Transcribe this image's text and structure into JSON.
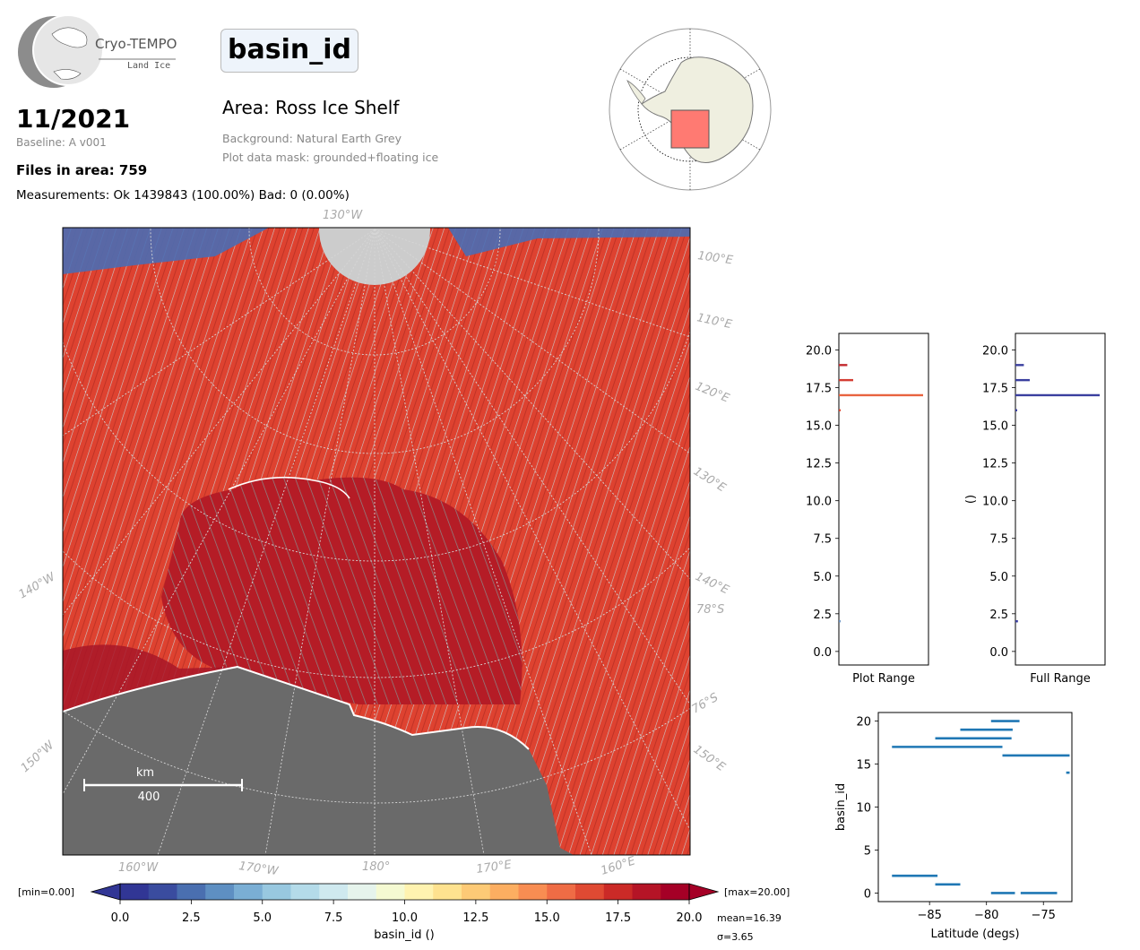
{
  "header": {
    "logo_name": "Cryo-TEMPO",
    "logo_sub": "Land Ice",
    "parameter": "basin_id",
    "date": "11/2021",
    "baseline": "Baseline: A v001",
    "files": "Files in area: 759",
    "measurements": "Measurements: Ok 1439843 (100.00%) Bad: 0 (0.00%)",
    "area": "Area: Ross Ice Shelf",
    "background": "Background: Natural Earth Grey",
    "mask": "Plot data mask: grounded+floating ice"
  },
  "map": {
    "lon_labels_top": [
      "130°W"
    ],
    "lon_labels_right": [
      "100°E",
      "110°E",
      "120°E",
      "130°E",
      "140°E",
      "150°E"
    ],
    "lon_labels_left": [
      "140°W",
      "150°W"
    ],
    "lat_labels": [
      "78°S",
      "76°S"
    ],
    "lon_labels_bottom": [
      "160°W",
      "170°W",
      "180°",
      "170°E",
      "160°E"
    ],
    "scale_unit": "km",
    "scale_value": "400"
  },
  "colorbar": {
    "min_label": "[min=0.00]",
    "max_label": "[max=20.00]",
    "ticks": [
      "0.0",
      "2.5",
      "5.0",
      "7.5",
      "10.0",
      "12.5",
      "15.0",
      "17.5",
      "20.0"
    ],
    "label": "basin_id ()",
    "mean": "mean=16.39",
    "sigma": "σ=3.65",
    "colors": [
      "#313695",
      "#3a4c9f",
      "#4a6fb0",
      "#5e8fc2",
      "#7aaed4",
      "#98c8e0",
      "#b4dbe9",
      "#cfe9ef",
      "#e6f4ec",
      "#f5fad2",
      "#fff3b0",
      "#fee28f",
      "#fdca76",
      "#fcae61",
      "#f88d52",
      "#ef6c45",
      "#e04a33",
      "#cb2a27",
      "#b51426",
      "#a50026"
    ]
  },
  "chart_data": [
    {
      "type": "bar",
      "orientation": "horizontal",
      "xlabel": "Plot Range",
      "ylim": [
        -0.9,
        21.1
      ],
      "yticks": [
        "0.0",
        "2.5",
        "5.0",
        "7.5",
        "10.0",
        "12.5",
        "15.0",
        "17.5",
        "20.0"
      ],
      "bins": [
        {
          "y": 2,
          "value": 0.01,
          "color": "#6f97c5"
        },
        {
          "y": 16,
          "value": 0.01,
          "color": "#e04a33"
        },
        {
          "y": 17,
          "value": 1.0,
          "color": "#e8633f"
        },
        {
          "y": 18,
          "value": 0.17,
          "color": "#d43d33"
        },
        {
          "y": 19,
          "value": 0.1,
          "color": "#c32a2f"
        }
      ]
    },
    {
      "type": "bar",
      "orientation": "horizontal",
      "xlabel": "Full Range",
      "ylabel": "()",
      "ylim": [
        -0.9,
        21.1
      ],
      "yticks": [
        "0.0",
        "2.5",
        "5.0",
        "7.5",
        "10.0",
        "12.5",
        "15.0",
        "17.5",
        "20.0"
      ],
      "bins": [
        {
          "y": 2,
          "value": 0.03
        },
        {
          "y": 16,
          "value": 0.01
        },
        {
          "y": 17,
          "value": 1.0
        },
        {
          "y": 18,
          "value": 0.17
        },
        {
          "y": 19,
          "value": 0.1
        }
      ],
      "color": "#3a3f9f"
    },
    {
      "type": "scatter",
      "xlabel": "Latitude (degs)",
      "ylabel": "basin_id",
      "xlim": [
        -89.5,
        -72.5
      ],
      "ylim": [
        -1,
        21
      ],
      "xticks": [
        "−85",
        "−80",
        "−75"
      ],
      "xtick_values": [
        -85,
        -80,
        -75
      ],
      "yticks": [
        "0",
        "5",
        "10",
        "15",
        "20"
      ],
      "ytick_values": [
        0,
        5,
        10,
        15,
        20
      ],
      "color": "#1f77b4",
      "segments": [
        {
          "y": 20,
          "x": [
            -79.6,
            -77.1
          ]
        },
        {
          "y": 19,
          "x": [
            -82.3,
            -77.7
          ]
        },
        {
          "y": 18,
          "x": [
            -84.5,
            -77.8
          ]
        },
        {
          "y": 17,
          "x": [
            -88.3,
            -78.6
          ]
        },
        {
          "y": 16,
          "x": [
            -78.6,
            -72.7
          ]
        },
        {
          "y": 14,
          "x": [
            -73.0,
            -72.7
          ]
        },
        {
          "y": 2,
          "x": [
            -88.3,
            -84.3
          ]
        },
        {
          "y": 1,
          "x": [
            -84.5,
            -82.3
          ]
        },
        {
          "y": 0,
          "x": [
            -79.6,
            -77.5
          ]
        },
        {
          "y": 0,
          "x": [
            -77.0,
            -73.8
          ]
        }
      ]
    }
  ]
}
